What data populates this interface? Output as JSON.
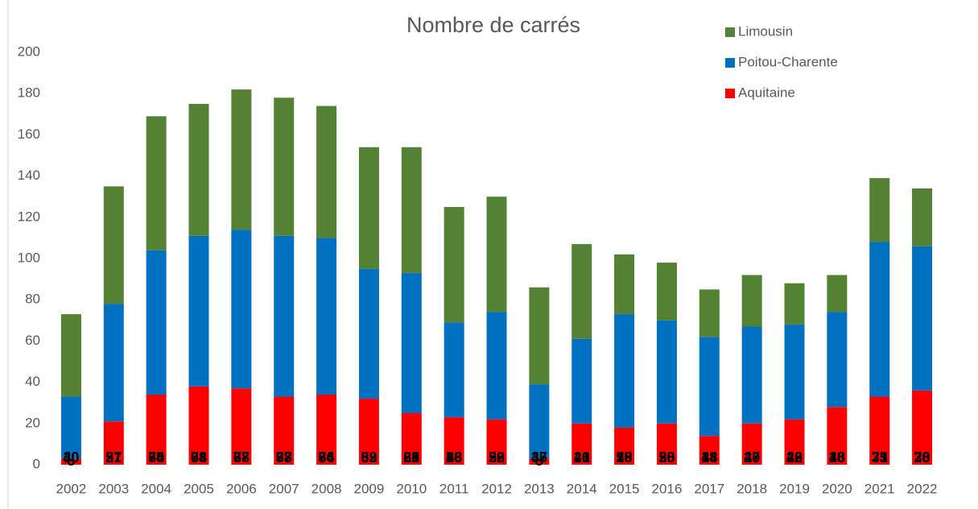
{
  "chart_data": {
    "type": "stacked_bar",
    "title": "Nombre de carrés",
    "categories": [
      "2002",
      "2003",
      "2004",
      "2005",
      "2006",
      "2007",
      "2008",
      "2009",
      "2010",
      "2011",
      "2012",
      "2013",
      "2014",
      "2015",
      "2016",
      "2017",
      "2018",
      "2019",
      "2020",
      "2021",
      "2022"
    ],
    "series": [
      {
        "name": "Aquitaine",
        "color": "#ff0000",
        "values": [
          3,
          21,
          34,
          38,
          37,
          33,
          34,
          32,
          25,
          23,
          22,
          3,
          20,
          18,
          20,
          14,
          20,
          22,
          28,
          33,
          36
        ]
      },
      {
        "name": "Poitou-Charente",
        "color": "#0070c0",
        "values": [
          30,
          57,
          70,
          73,
          77,
          78,
          76,
          63,
          68,
          46,
          52,
          36,
          41,
          55,
          50,
          48,
          47,
          46,
          46,
          75,
          70
        ]
      },
      {
        "name": "Limousin",
        "color": "#548235",
        "values": [
          40,
          57,
          65,
          64,
          68,
          67,
          64,
          59,
          61,
          56,
          56,
          47,
          46,
          29,
          28,
          23,
          25,
          20,
          18,
          31,
          28
        ]
      }
    ],
    "ylim": [
      0,
      200
    ],
    "yticks": [
      0,
      20,
      40,
      60,
      80,
      100,
      120,
      140,
      160,
      180,
      200
    ],
    "grid": false,
    "legend": "top-right"
  }
}
